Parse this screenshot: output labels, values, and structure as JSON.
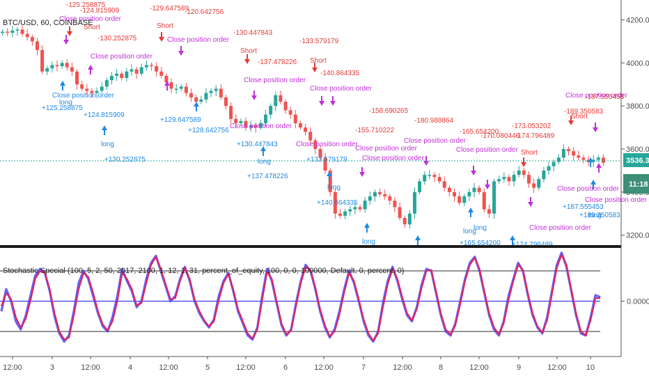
{
  "header": {
    "symbol_label": "BTC/USD, 60, COINBASE"
  },
  "indicator": {
    "label": "Stochastic Special (100, 5, 2, 50, 2017, 2100, 1, 12, 1, 31, percent_of_equity, 100, 0, 0, 100000, Default, 0, percent, 0)"
  },
  "price_scale": {
    "ticks": [
      "4200.00",
      "4000.00",
      "3800.00",
      "3600.00",
      "3400.00",
      "3200.00"
    ],
    "last_price": "3536.37",
    "countdown": "11:18"
  },
  "stoch_scale": {
    "ticks": [
      "0.0000"
    ]
  },
  "time_axis": {
    "labels": [
      "12:00",
      "3",
      "12:00",
      "4",
      "12:00",
      "5",
      "12:00",
      "6",
      "12:00",
      "7",
      "12:00",
      "8",
      "12:00",
      "9",
      "12:00",
      "10"
    ]
  },
  "colors": {
    "up_candle": "#26a69a",
    "down_candle": "#ef5350",
    "stoch_k": "#3b3bff",
    "stoch_d": "#e0245e",
    "short_label": "#e53935",
    "long_label": "#1e88e5",
    "close_label": "#c030d8",
    "last_price_badge": "#26a69a",
    "countdown_badge": "#3d8f76"
  },
  "annotations": [
    {
      "text": "-125.258875",
      "color": "red"
    },
    {
      "text": "-124.815909",
      "color": "red"
    },
    {
      "text": "Short",
      "color": "red"
    },
    {
      "text": "Close position order",
      "color": "mag"
    },
    {
      "text": "-130.252875",
      "color": "red"
    },
    {
      "text": "Close position order",
      "color": "mag"
    },
    {
      "text": "long",
      "color": "blue"
    },
    {
      "text": "Close position order",
      "color": "blue"
    },
    {
      "text": "+125.258875",
      "color": "blue"
    },
    {
      "text": "+124.815909",
      "color": "blue"
    },
    {
      "text": "long",
      "color": "blue"
    },
    {
      "text": "+130.252875",
      "color": "blue"
    },
    {
      "text": "-129.647589",
      "color": "red"
    },
    {
      "text": "Short",
      "color": "red"
    },
    {
      "text": "Close position order",
      "color": "mag"
    },
    {
      "text": "-120.642756",
      "color": "red"
    },
    {
      "text": "+129.647589",
      "color": "blue"
    },
    {
      "text": "+128.642756",
      "color": "blue"
    },
    {
      "text": "-130.447843",
      "color": "red"
    },
    {
      "text": "Short",
      "color": "red"
    },
    {
      "text": "-137.478226",
      "color": "red"
    },
    {
      "text": "Close position order",
      "color": "mag"
    },
    {
      "text": "Close position order",
      "color": "mag"
    },
    {
      "text": "+130.447843",
      "color": "blue"
    },
    {
      "text": "long",
      "color": "blue"
    },
    {
      "text": "+137.478226",
      "color": "blue"
    },
    {
      "text": "-133.579179",
      "color": "red"
    },
    {
      "text": "Short",
      "color": "red"
    },
    {
      "text": "-140.864335",
      "color": "red"
    },
    {
      "text": "Close position order",
      "color": "mag"
    },
    {
      "text": "Close position order",
      "color": "mag"
    },
    {
      "text": "+133.579179",
      "color": "blue"
    },
    {
      "text": "long",
      "color": "blue"
    },
    {
      "text": "+140.864335",
      "color": "blue"
    },
    {
      "text": "-155.710222",
      "color": "red"
    },
    {
      "text": "-158.690265",
      "color": "red"
    },
    {
      "text": "Close position order",
      "color": "mag"
    },
    {
      "text": "Close position order",
      "color": "mag"
    },
    {
      "text": "long",
      "color": "blue"
    },
    {
      "text": "-180.988864",
      "color": "red"
    },
    {
      "text": "Close position order",
      "color": "mag"
    },
    {
      "text": "-165.654200",
      "color": "red"
    },
    {
      "text": "-170.080446",
      "color": "red"
    },
    {
      "text": "Close position order",
      "color": "mag"
    },
    {
      "text": "long",
      "color": "blue"
    },
    {
      "text": "long",
      "color": "blue"
    },
    {
      "text": "+165.654200",
      "color": "blue"
    },
    {
      "text": "-173.053202",
      "color": "red"
    },
    {
      "text": "-174.796489",
      "color": "red"
    },
    {
      "text": "Short",
      "color": "red"
    },
    {
      "text": "Close position order",
      "color": "mag"
    },
    {
      "text": "+174.796489",
      "color": "blue"
    },
    {
      "text": "Close position order",
      "color": "mag"
    },
    {
      "text": "-187.555453",
      "color": "red"
    },
    {
      "text": "-189.350583",
      "color": "red"
    },
    {
      "text": "Short",
      "color": "red"
    },
    {
      "text": "Close position order",
      "color": "mag"
    },
    {
      "text": "Close position order",
      "color": "mag"
    },
    {
      "text": "long",
      "color": "blue"
    },
    {
      "text": "+187.555453",
      "color": "blue"
    },
    {
      "text": "+189.350583",
      "color": "blue"
    }
  ],
  "chart_data": [
    {
      "type": "candlestick",
      "title": "BTC/USD, 60, COINBASE",
      "ylim": [
        3160,
        4260
      ],
      "x_labels": [
        "12:00",
        "3",
        "12:00",
        "4",
        "12:00",
        "5",
        "12:00",
        "6",
        "12:00",
        "7",
        "12:00",
        "8",
        "12:00",
        "9",
        "12:00",
        "10"
      ],
      "close": [
        4145,
        4140,
        4150,
        4155,
        4135,
        4120,
        4100,
        4060,
        3960,
        3975,
        3990,
        3985,
        4000,
        3980,
        3960,
        3900,
        3880,
        3870,
        3860,
        3870,
        3890,
        3920,
        3940,
        3950,
        3930,
        3960,
        3970,
        3950,
        3980,
        3990,
        3985,
        3960,
        3940,
        3910,
        3880,
        3880,
        3890,
        3860,
        3840,
        3820,
        3830,
        3860,
        3870,
        3880,
        3840,
        3800,
        3740,
        3720,
        3730,
        3700,
        3710,
        3700,
        3720,
        3760,
        3800,
        3850,
        3820,
        3780,
        3760,
        3720,
        3700,
        3680,
        3640,
        3600,
        3560,
        3500,
        3400,
        3300,
        3290,
        3310,
        3320,
        3330,
        3320,
        3360,
        3380,
        3400,
        3390,
        3380,
        3360,
        3330,
        3280,
        3250,
        3300,
        3400,
        3450,
        3480,
        3480,
        3470,
        3450,
        3420,
        3400,
        3380,
        3350,
        3380,
        3400,
        3420,
        3400,
        3320,
        3300,
        3450,
        3460,
        3470,
        3450,
        3480,
        3500,
        3480,
        3440,
        3420,
        3460,
        3500,
        3520,
        3540,
        3560,
        3600,
        3590,
        3570,
        3560,
        3550,
        3540,
        3550,
        3560,
        3536
      ]
    },
    {
      "type": "line",
      "title": "Stochastic Special (100, 5, 2, 50, 2017, 2100, 1, 12, 1, 31, percent_of_equity, 100, 0, 0, 100000, Default, 0, percent, 0)",
      "ylim": [
        0,
        100
      ],
      "levels": [
        80,
        50,
        20
      ],
      "series": [
        {
          "values": [
            40,
            62,
            50,
            30,
            22,
            35,
            55,
            75,
            82,
            78,
            60,
            35,
            18,
            10,
            16,
            40,
            68,
            80,
            72,
            55,
            38,
            25,
            20,
            34,
            55,
            82,
            70,
            60,
            44,
            50,
            72,
            88,
            95,
            80,
            65,
            50,
            55,
            72,
            84,
            70,
            50,
            38,
            30,
            24,
            32,
            55,
            70,
            78,
            60,
            40,
            28,
            16,
            12,
            24,
            55,
            82,
            70,
            48,
            26,
            16,
            22,
            48,
            70,
            86,
            80,
            62,
            40,
            24,
            14,
            22,
            40,
            62,
            80,
            68,
            50,
            30,
            16,
            10,
            20,
            48,
            70,
            84,
            70,
            52,
            36,
            30,
            44,
            66,
            82,
            80,
            58,
            36,
            20,
            16,
            28,
            50,
            72,
            88,
            94,
            80,
            58,
            36,
            22,
            16,
            30,
            55,
            72,
            88,
            80,
            56,
            36,
            24,
            18,
            34,
            60,
            86,
            98,
            84,
            60,
            36,
            18,
            16,
            34,
            56,
            54
          ]
        },
        {
          "values": [
            45,
            58,
            52,
            34,
            24,
            32,
            50,
            72,
            80,
            78,
            62,
            38,
            20,
            12,
            14,
            36,
            62,
            78,
            74,
            58,
            40,
            27,
            21,
            30,
            50,
            78,
            72,
            62,
            46,
            48,
            68,
            86,
            94,
            82,
            67,
            52,
            53,
            70,
            83,
            72,
            52,
            40,
            31,
            25,
            30,
            51,
            68,
            77,
            62,
            42,
            30,
            18,
            13,
            22,
            51,
            79,
            72,
            50,
            28,
            17,
            21,
            45,
            68,
            84,
            81,
            64,
            42,
            26,
            15,
            20,
            37,
            59,
            78,
            70,
            52,
            32,
            18,
            11,
            18,
            44,
            67,
            82,
            72,
            54,
            38,
            31,
            42,
            63,
            80,
            81,
            60,
            38,
            22,
            17,
            26,
            47,
            70,
            86,
            93,
            82,
            60,
            38,
            24,
            17,
            28,
            51,
            70,
            86,
            81,
            58,
            38,
            25,
            19,
            31,
            57,
            83,
            96,
            86,
            62,
            38,
            20,
            16,
            31,
            53,
            53
          ]
        }
      ]
    }
  ]
}
